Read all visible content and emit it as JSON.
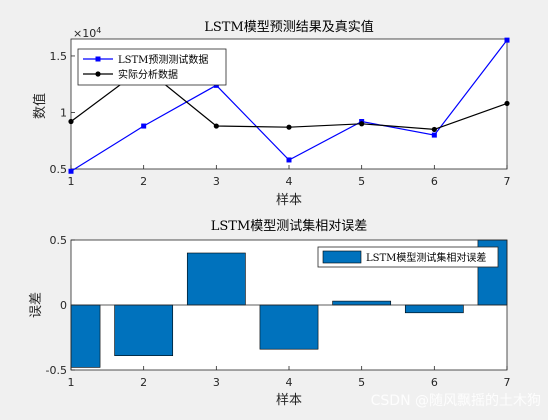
{
  "chart_data": [
    {
      "type": "line",
      "title": "LSTM模型预测结果及真实值",
      "xlabel": "样本",
      "ylabel": "数值",
      "exponent_label": "×10^4",
      "x": [
        1,
        2,
        3,
        4,
        5,
        6,
        7
      ],
      "xlim": [
        1,
        7
      ],
      "ylim": [
        0.5,
        1.65
      ],
      "xticks": [
        "1",
        "2",
        "3",
        "4",
        "5",
        "6",
        "7"
      ],
      "yticks": [
        0.5,
        1,
        1.5
      ],
      "ytick_labels": [
        "0.5",
        "1",
        "1.5"
      ],
      "grid": false,
      "legend_position": "top-left",
      "series": [
        {
          "name": "LSTM预测测试数据",
          "values": [
            0.48,
            0.88,
            1.24,
            0.58,
            0.92,
            0.8,
            1.64
          ],
          "color": "#0000ff",
          "marker": "square"
        },
        {
          "name": "实际分析数据",
          "values": [
            0.92,
            1.4,
            0.88,
            0.87,
            0.9,
            0.85,
            1.08
          ],
          "color": "#000000",
          "marker": "dot"
        }
      ]
    },
    {
      "type": "bar",
      "title": "LSTM模型测试集相对误差",
      "xlabel": "样本",
      "ylabel": "误差",
      "categories": [
        "1",
        "2",
        "3",
        "4",
        "5",
        "6",
        "7"
      ],
      "values": [
        -0.48,
        -0.39,
        0.4,
        -0.34,
        0.03,
        -0.06,
        0.52
      ],
      "xlim": [
        1,
        7
      ],
      "ylim": [
        -0.5,
        0.5
      ],
      "yticks": [
        -0.5,
        0,
        0.5
      ],
      "ytick_labels": [
        "-0.5",
        "0",
        "0.5"
      ],
      "grid": false,
      "legend_position": "top-right",
      "series": [
        {
          "name": "LSTM模型测试集相对误差",
          "color": "#0072bd"
        }
      ]
    }
  ],
  "watermark": "CSDN @随风飘摇的土木狗"
}
